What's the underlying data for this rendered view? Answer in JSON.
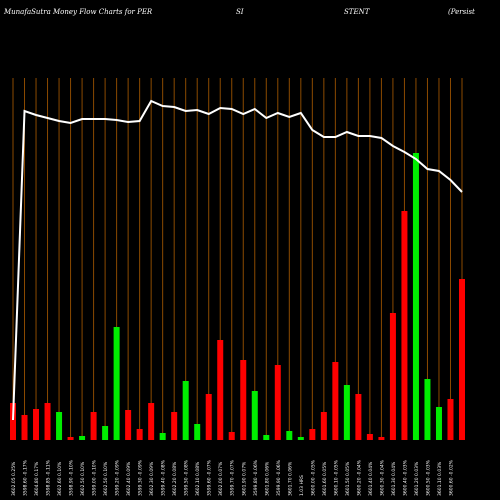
{
  "chart_data": {
    "type": "bar",
    "title_parts": [
      "MunafaSutra  Money Flow  Charts for PER",
      "SI",
      "STENT",
      "(Persist"
    ],
    "bar_colors": {
      "up": "#00ee00",
      "down": "#ff0000"
    },
    "line_color": "#ffffff",
    "vgrid_color": "#8b4a00",
    "categories": [
      "3602.05 0.25%",
      "3598.60 -0.17%",
      "3604.80 0.17%",
      "3598.85 -0.11%",
      "3602.60 0.10%",
      "3598.90 -0.10%",
      "3602.50 0.10%",
      "3599.00 -0.10%",
      "3602.50 0.10%",
      "3599.20 -0.09%",
      "3602.40 0.09%",
      "3599.30 -0.09%",
      "3602.30 0.09%",
      "3599.40 -0.08%",
      "3602.20 0.08%",
      "3599.50 -0.08%",
      "3602.10 0.08%",
      "3599.60 -0.07%",
      "3602.00 0.07%",
      "3599.70 -0.07%",
      "3601.90 0.07%",
      "3599.80 -0.06%",
      "3601.80 0.06%",
      "3599.90 -0.06%",
      "3601.70 0.06%",
      "1.03 HRS",
      "3600.00 -0.05%",
      "3601.60 0.05%",
      "3600.10 -0.05%",
      "3601.50 0.05%",
      "3600.20 -0.04%",
      "3601.40 0.04%",
      "3600.30 -0.04%",
      "3601.30 0.04%",
      "3600.40 -0.03%",
      "3601.20 0.03%",
      "3600.50 -0.03%",
      "3601.10 0.03%",
      "3600.60 -0.02%"
    ],
    "bars": [
      {
        "value": 37,
        "dir": "down"
      },
      {
        "value": 25,
        "dir": "down"
      },
      {
        "value": 31,
        "dir": "down"
      },
      {
        "value": 37,
        "dir": "down"
      },
      {
        "value": 28,
        "dir": "up"
      },
      {
        "value": 3,
        "dir": "down"
      },
      {
        "value": 4,
        "dir": "up"
      },
      {
        "value": 28,
        "dir": "down"
      },
      {
        "value": 14,
        "dir": "up"
      },
      {
        "value": 113,
        "dir": "up"
      },
      {
        "value": 30,
        "dir": "down"
      },
      {
        "value": 11,
        "dir": "down"
      },
      {
        "value": 37,
        "dir": "down"
      },
      {
        "value": 7,
        "dir": "up"
      },
      {
        "value": 28,
        "dir": "down"
      },
      {
        "value": 59,
        "dir": "up"
      },
      {
        "value": 16,
        "dir": "up"
      },
      {
        "value": 46,
        "dir": "down"
      },
      {
        "value": 100,
        "dir": "down"
      },
      {
        "value": 8,
        "dir": "down"
      },
      {
        "value": 80,
        "dir": "down"
      },
      {
        "value": 49,
        "dir": "up"
      },
      {
        "value": 5,
        "dir": "up"
      },
      {
        "value": 75,
        "dir": "down"
      },
      {
        "value": 9,
        "dir": "up"
      },
      {
        "value": 3,
        "dir": "up"
      },
      {
        "value": 11,
        "dir": "down"
      },
      {
        "value": 28,
        "dir": "down"
      },
      {
        "value": 78,
        "dir": "down"
      },
      {
        "value": 55,
        "dir": "up"
      },
      {
        "value": 46,
        "dir": "down"
      },
      {
        "value": 6,
        "dir": "down"
      },
      {
        "value": 3,
        "dir": "down"
      },
      {
        "value": 127,
        "dir": "down"
      },
      {
        "value": 229,
        "dir": "down"
      },
      {
        "value": 287,
        "dir": "up"
      },
      {
        "value": 61,
        "dir": "up"
      },
      {
        "value": 33,
        "dir": "up"
      },
      {
        "value": 41,
        "dir": "down"
      },
      {
        "value": 161,
        "dir": "down"
      }
    ],
    "line": [
      20,
      329,
      325,
      322,
      319,
      317,
      321,
      321,
      321,
      320,
      318,
      319,
      339,
      334,
      333,
      329,
      330,
      326,
      332,
      331,
      326,
      331,
      322,
      327,
      323,
      327,
      310,
      303,
      303,
      308,
      304,
      304,
      302,
      294,
      288,
      281,
      271,
      269,
      260,
      248
    ],
    "ylim": [
      0,
      340
    ]
  }
}
